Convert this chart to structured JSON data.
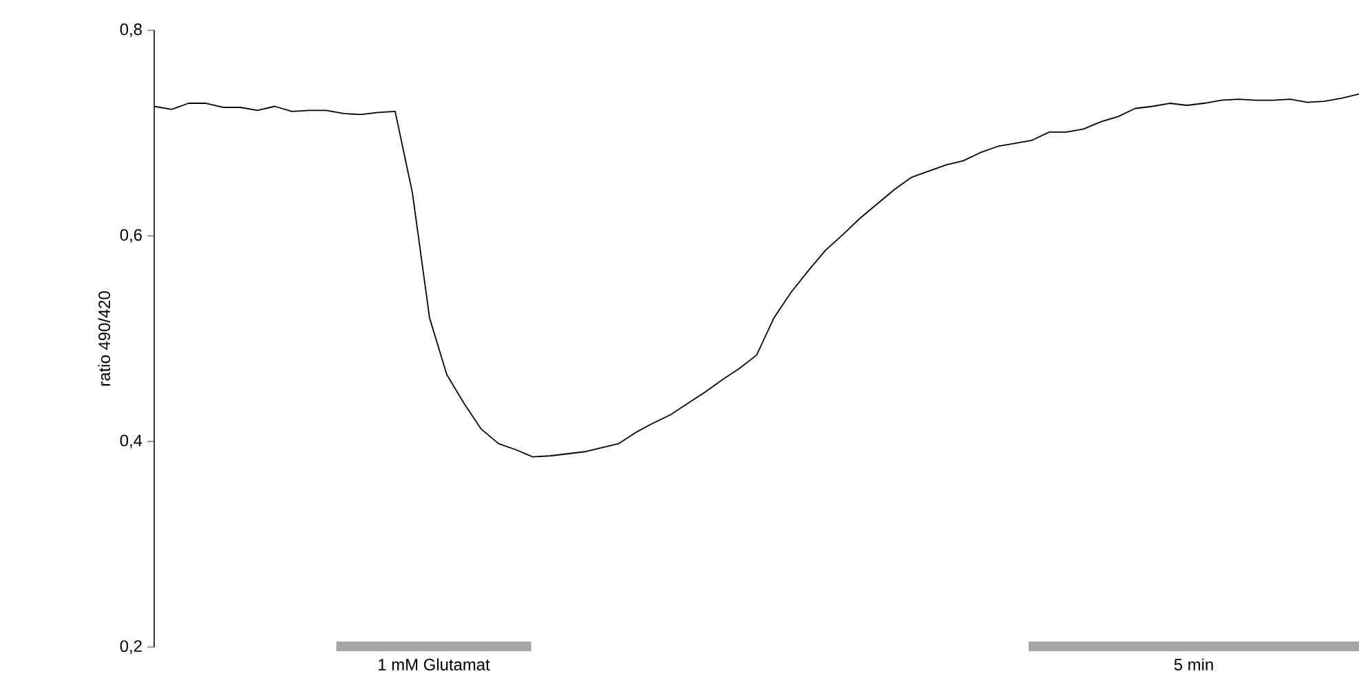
{
  "chart_data": {
    "type": "line",
    "ylabel": "ratio 490/420",
    "categories": [
      null,
      null,
      null,
      null,
      null,
      null,
      null,
      null,
      null,
      null,
      null,
      null,
      null,
      null,
      null,
      null,
      null,
      null,
      null,
      null,
      null,
      null,
      null,
      null,
      null,
      null,
      null,
      null,
      null,
      null,
      null,
      null,
      null,
      null,
      null,
      null,
      null,
      null,
      null,
      null,
      null,
      null,
      null,
      null,
      null,
      null,
      null,
      null,
      null,
      null,
      null,
      null,
      null,
      null,
      null,
      null,
      null,
      null,
      null,
      null,
      null,
      null,
      null,
      null,
      null,
      null,
      null,
      null,
      null,
      null,
      null
    ],
    "values": [
      0.726,
      0.723,
      0.729,
      0.729,
      0.725,
      0.725,
      0.722,
      0.726,
      0.721,
      0.722,
      0.722,
      0.719,
      0.718,
      0.72,
      0.721,
      0.642,
      0.52,
      0.465,
      0.437,
      0.412,
      0.398,
      0.392,
      0.385,
      0.386,
      0.388,
      0.39,
      0.394,
      0.398,
      0.409,
      0.418,
      0.426,
      0.437,
      0.448,
      0.46,
      0.471,
      0.484,
      0.52,
      0.545,
      0.566,
      0.586,
      0.601,
      0.617,
      0.631,
      0.645,
      0.657,
      0.663,
      0.669,
      0.673,
      0.681,
      0.687,
      0.69,
      0.693,
      0.701,
      0.701,
      0.704,
      0.711,
      0.716,
      0.724,
      0.726,
      0.729,
      0.727,
      0.729,
      0.732,
      0.733,
      0.732,
      0.732,
      0.733,
      0.73,
      0.731,
      0.734,
      0.738
    ],
    "color": "#000000",
    "ylim": [
      0.2,
      0.8
    ],
    "yticks": [
      {
        "value": 0.2,
        "label": "0,2"
      },
      {
        "value": 0.4,
        "label": "0,4"
      },
      {
        "value": 0.6,
        "label": "0,6"
      },
      {
        "value": 0.8,
        "label": "0,8"
      }
    ],
    "annotations": [
      "1 mM Glutamat",
      "5 min"
    ]
  }
}
